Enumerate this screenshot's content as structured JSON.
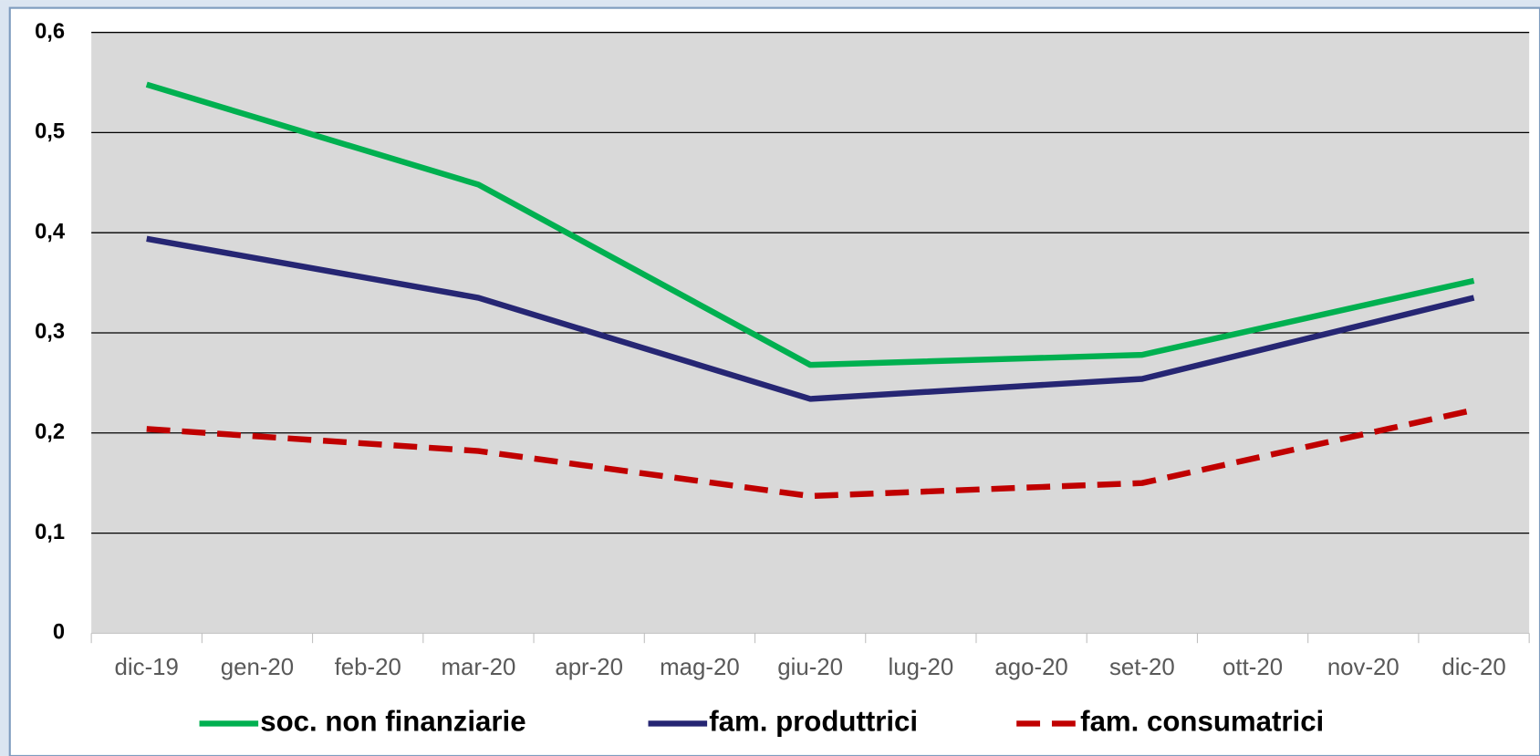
{
  "chart_data": {
    "type": "line",
    "categories": [
      "dic-19",
      "gen-20",
      "feb-20",
      "mar-20",
      "apr-20",
      "mag-20",
      "giu-20",
      "lug-20",
      "ago-20",
      "set-20",
      "ott-20",
      "nov-20",
      "dic-20"
    ],
    "ylim": [
      0,
      0.6
    ],
    "yticks": [
      0,
      {
        "value": 0.1,
        "label": "0,1"
      },
      {
        "value": 0.2,
        "label": "0,2"
      },
      {
        "value": 0.3,
        "label": "0,3"
      },
      {
        "value": 0.4,
        "label": "0,4"
      },
      {
        "value": 0.5,
        "label": "0,5"
      },
      {
        "value": 0.6,
        "label": "0,6"
      }
    ],
    "grid": true,
    "legend": "bottom",
    "series": [
      {
        "name": "soc. non finanziarie",
        "color": "#00b050",
        "dash": false,
        "x": [
          "dic-19",
          "mar-20",
          "giu-20",
          "set-20",
          "dic-20"
        ],
        "values": [
          0.548,
          0.448,
          0.268,
          0.278,
          0.352
        ]
      },
      {
        "name": "fam. produttrici",
        "color": "#262673",
        "dash": false,
        "x": [
          "dic-19",
          "mar-20",
          "giu-20",
          "set-20",
          "dic-20"
        ],
        "values": [
          0.394,
          0.335,
          0.234,
          0.254,
          0.335
        ]
      },
      {
        "name": "fam. consumatrici",
        "color": "#c00000",
        "dash": true,
        "x": [
          "dic-19",
          "mar-20",
          "giu-20",
          "set-20",
          "dic-20"
        ],
        "values": [
          0.204,
          0.182,
          0.137,
          0.15,
          0.223
        ]
      }
    ]
  }
}
